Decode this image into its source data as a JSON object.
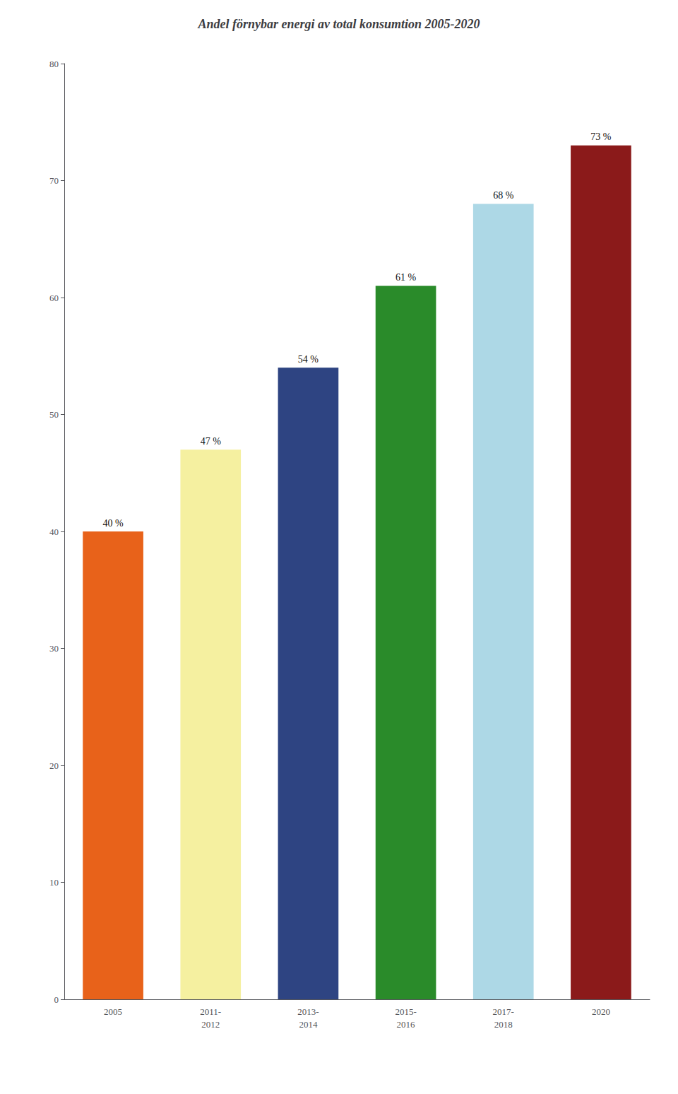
{
  "chart_data": {
    "type": "bar",
    "title": "Andel förnybar energi av total konsumtion 2005-2020",
    "categories": [
      "2005",
      "2011-\n2012",
      "2013-\n2014",
      "2015-\n2016",
      "2017-\n2018",
      "2020"
    ],
    "values": [
      40,
      47,
      54,
      61,
      68,
      73
    ],
    "value_labels": [
      "40 %",
      "47 %",
      "54 %",
      "61 %",
      "68 %",
      "73 %"
    ],
    "data_labels": true,
    "colors": [
      "#E8621A",
      "#F5F0A0",
      "#2E4482",
      "#2A8B2A",
      "#ADD8E6",
      "#8B1A1A"
    ],
    "ylim": [
      0,
      80
    ],
    "yticks": [
      0,
      10,
      20,
      30,
      40,
      50,
      60,
      70,
      80
    ],
    "grid": false
  }
}
